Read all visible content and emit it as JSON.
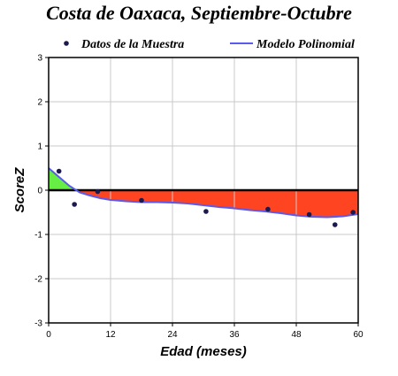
{
  "chart_data": {
    "type": "scatter",
    "title": "Costa de Oaxaca, Septiembre-Octubre",
    "xlabel": "Edad (meses)",
    "ylabel": "ScoreZ",
    "xlim": [
      0,
      60
    ],
    "ylim": [
      -3,
      3
    ],
    "xticks": [
      0,
      12,
      24,
      36,
      48,
      60
    ],
    "yticks": [
      -3,
      -2,
      -1,
      0,
      1,
      2,
      3
    ],
    "grid": true,
    "legend_position": "top",
    "legend": [
      {
        "label": "Datos de la Muestra",
        "kind": "marker"
      },
      {
        "label": "Modelo Polinomial",
        "kind": "line"
      }
    ],
    "series": [
      {
        "name": "Datos de la Muestra",
        "kind": "scatter",
        "color": "#1a1a4e",
        "x": [
          2,
          5,
          9.5,
          18,
          30.5,
          42.5,
          50.5,
          55.5,
          59
        ],
        "y": [
          0.43,
          -0.32,
          -0.03,
          -0.23,
          -0.48,
          -0.43,
          -0.55,
          -0.78,
          -0.5
        ]
      },
      {
        "name": "Modelo Polinomial",
        "kind": "line",
        "color": "#5a5aee",
        "x": [
          0,
          2,
          4,
          6,
          8,
          10,
          12,
          15,
          18,
          21,
          24,
          27,
          30,
          33,
          36,
          39,
          42,
          45,
          48,
          51,
          54,
          57,
          60
        ],
        "y": [
          0.5,
          0.3,
          0.1,
          -0.05,
          -0.12,
          -0.18,
          -0.22,
          -0.25,
          -0.27,
          -0.27,
          -0.28,
          -0.3,
          -0.34,
          -0.38,
          -0.41,
          -0.45,
          -0.48,
          -0.52,
          -0.57,
          -0.6,
          -0.61,
          -0.59,
          -0.54
        ]
      }
    ],
    "fill_colors": {
      "above_zero": "#66ee44",
      "below_zero": "#ff4422"
    },
    "zero_line_color": "#000000",
    "grid_color": "#c8c8c8"
  }
}
